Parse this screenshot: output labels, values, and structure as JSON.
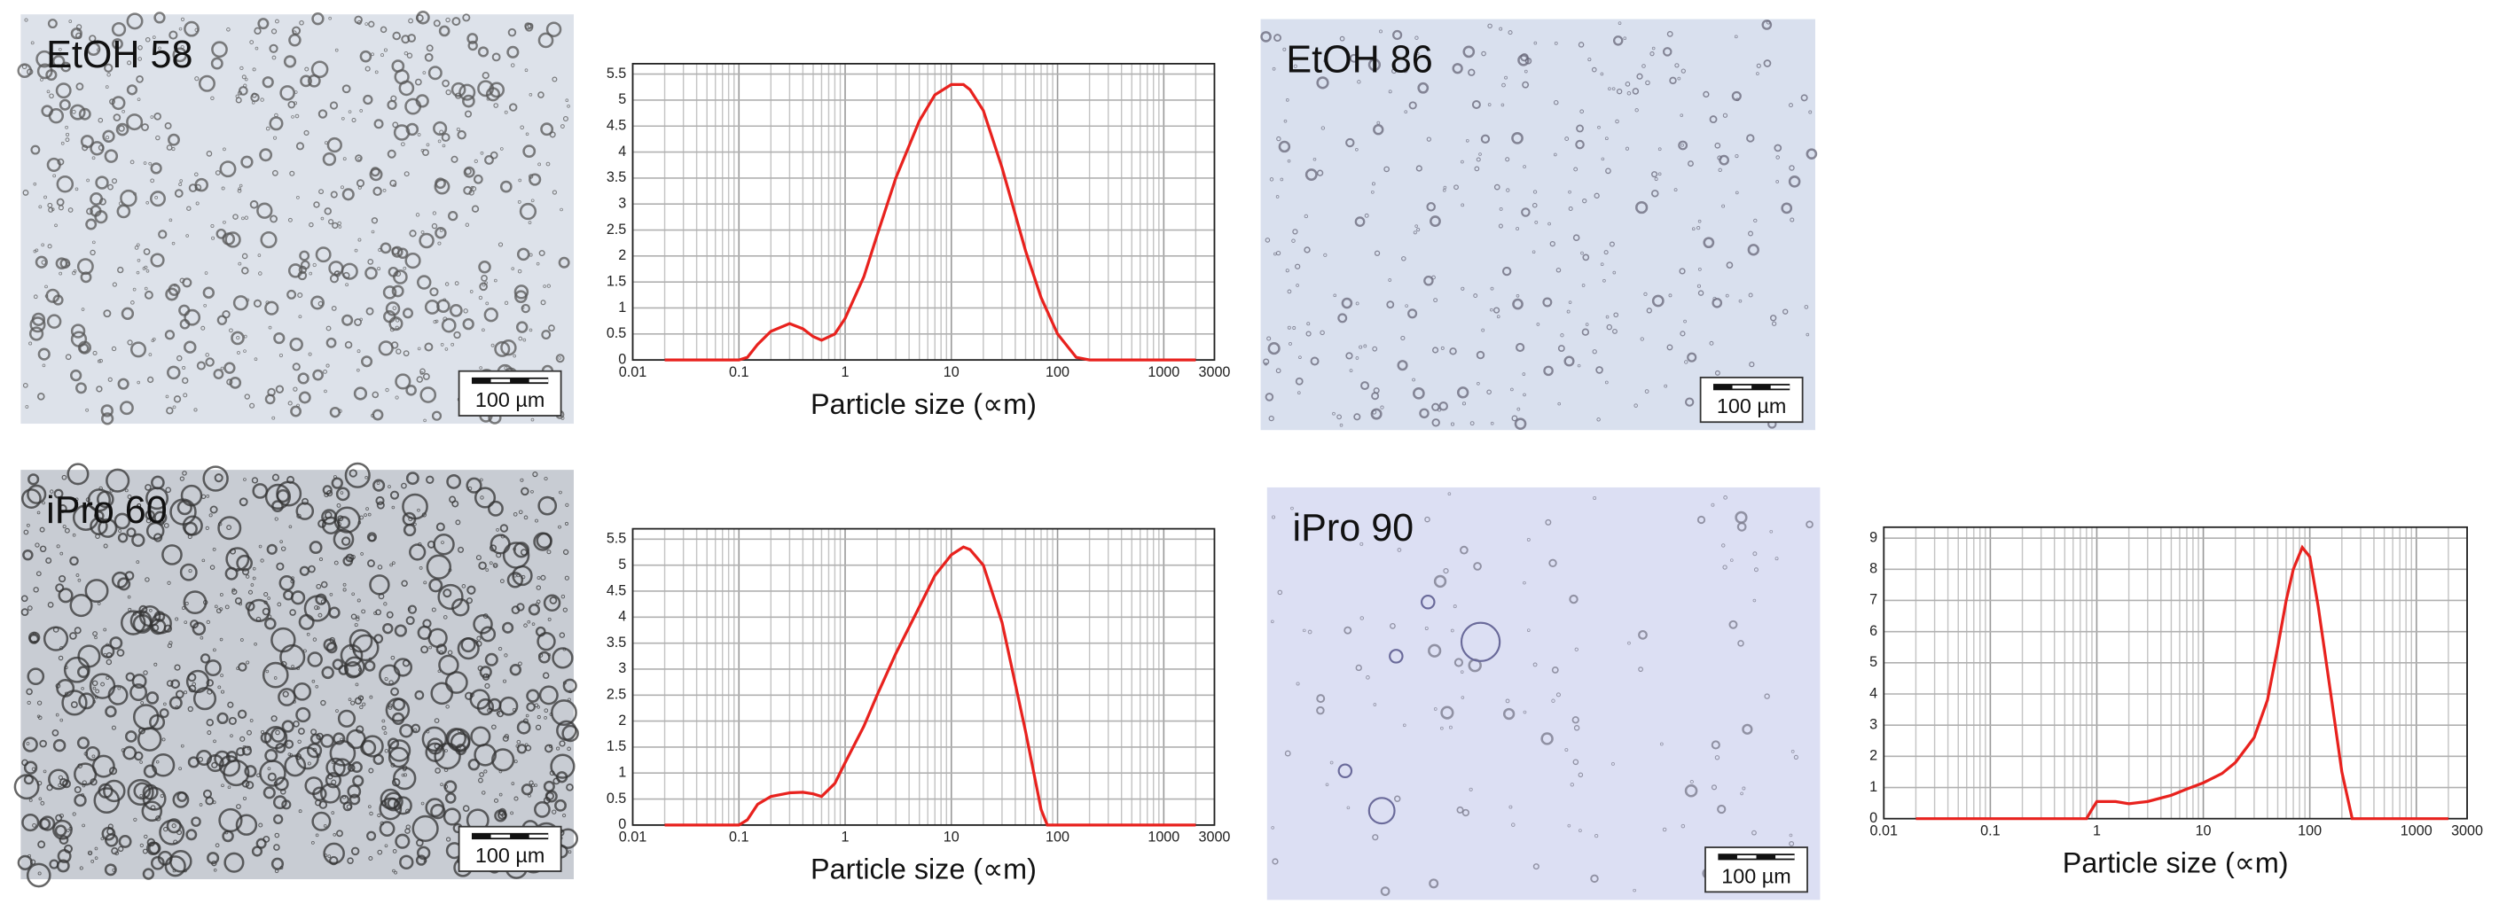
{
  "micrographs": [
    {
      "label": "EtOH 58",
      "scale_bar": "100 µm"
    },
    {
      "label": "EtOH 86",
      "scale_bar": "100 µm"
    },
    {
      "label": "iPro 60",
      "scale_bar": "100 µm"
    },
    {
      "label": "iPro 90",
      "scale_bar": "100 µm"
    }
  ],
  "chart_data": [
    {
      "type": "line",
      "x_label": "Particle size (∝m)",
      "xscale": "log",
      "xlim": [
        0.01,
        3000
      ],
      "xticks": [
        0.01,
        0.1,
        1,
        10,
        100,
        1000,
        3000
      ],
      "ylim": [
        0,
        5.7
      ],
      "yticks": [
        0,
        0.5,
        1,
        1.5,
        2,
        2.5,
        3,
        3.5,
        4,
        4.5,
        5,
        5.5
      ],
      "grid": true,
      "color": "#e8221e",
      "x": [
        0.02,
        0.05,
        0.1,
        0.12,
        0.15,
        0.2,
        0.3,
        0.4,
        0.5,
        0.6,
        0.8,
        1,
        1.5,
        2,
        3,
        5,
        7,
        10,
        13,
        15,
        20,
        30,
        50,
        70,
        100,
        150,
        200,
        500,
        1000,
        2000
      ],
      "values": [
        0,
        0,
        0,
        0.05,
        0.3,
        0.55,
        0.7,
        0.6,
        0.45,
        0.38,
        0.5,
        0.8,
        1.6,
        2.4,
        3.5,
        4.6,
        5.1,
        5.3,
        5.3,
        5.2,
        4.8,
        3.7,
        2.1,
        1.2,
        0.5,
        0.05,
        0,
        0,
        0,
        0
      ]
    },
    {
      "type": "line",
      "x_label": "Particle size (∝m)",
      "xscale": "log",
      "xlim": [
        0.01,
        3000
      ],
      "xticks": [
        0.01,
        0.1,
        1,
        10,
        100,
        1000,
        3000
      ],
      "ylim": [
        0,
        5.7
      ],
      "yticks": [
        0,
        0.5,
        1,
        1.5,
        2,
        2.5,
        3,
        3.5,
        4,
        4.5,
        5,
        5.5
      ],
      "grid": true,
      "color": "#e8221e",
      "x": [
        0.02,
        0.05,
        0.1,
        0.12,
        0.15,
        0.2,
        0.3,
        0.4,
        0.5,
        0.6,
        0.8,
        1,
        1.5,
        2,
        3,
        5,
        7,
        10,
        13,
        15,
        20,
        30,
        50,
        70,
        80,
        100,
        200,
        500,
        1000,
        2000
      ],
      "values": [
        0,
        0,
        0,
        0.1,
        0.4,
        0.55,
        0.62,
        0.63,
        0.6,
        0.55,
        0.8,
        1.2,
        1.9,
        2.5,
        3.3,
        4.2,
        4.8,
        5.2,
        5.35,
        5.3,
        5.0,
        3.9,
        1.8,
        0.3,
        0,
        0,
        0,
        0,
        0,
        0
      ]
    },
    {
      "type": "line",
      "x_label": "Particle size (∝m)",
      "xscale": "log",
      "xlim": [
        0.01,
        3000
      ],
      "xticks": [
        0.01,
        0.1,
        1,
        10,
        100,
        1000,
        3000
      ],
      "ylim": [
        0,
        9.35
      ],
      "yticks": [
        0,
        1,
        2,
        3,
        4,
        5,
        6,
        7,
        8,
        9
      ],
      "grid": true,
      "color": "#e8221e",
      "x": [
        0.02,
        0.1,
        0.5,
        0.8,
        0.9,
        1,
        1.5,
        2,
        3,
        5,
        7,
        10,
        15,
        20,
        30,
        40,
        50,
        60,
        70,
        85,
        100,
        120,
        150,
        200,
        250,
        500,
        1000,
        2000
      ],
      "values": [
        0,
        0,
        0,
        0,
        0.3,
        0.55,
        0.55,
        0.48,
        0.55,
        0.75,
        0.95,
        1.15,
        1.45,
        1.8,
        2.6,
        3.8,
        5.5,
        7.0,
        8.0,
        8.7,
        8.4,
        6.8,
        4.5,
        1.5,
        0,
        0,
        0,
        0
      ]
    }
  ]
}
